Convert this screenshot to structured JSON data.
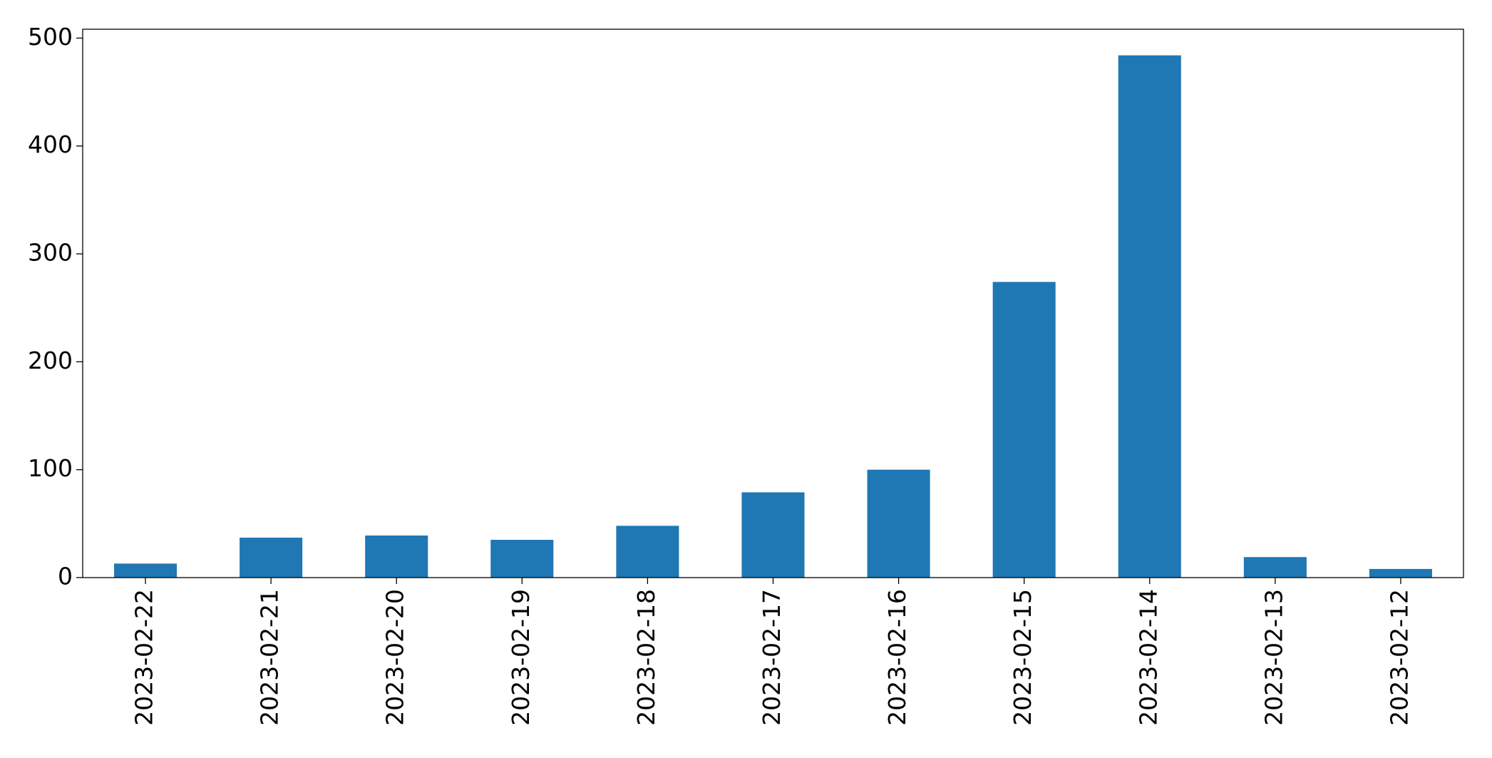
{
  "chart_data": {
    "type": "bar",
    "categories": [
      "2023-02-22",
      "2023-02-21",
      "2023-02-20",
      "2023-02-19",
      "2023-02-18",
      "2023-02-17",
      "2023-02-16",
      "2023-02-15",
      "2023-02-14",
      "2023-02-13",
      "2023-02-12"
    ],
    "values": [
      13,
      37,
      39,
      35,
      48,
      79,
      100,
      274,
      484,
      19,
      8
    ],
    "color": "#1f77b4",
    "ylim": [
      0,
      508.2
    ],
    "yticks": [
      0,
      100,
      200,
      300,
      400,
      500
    ],
    "grid": false
  }
}
